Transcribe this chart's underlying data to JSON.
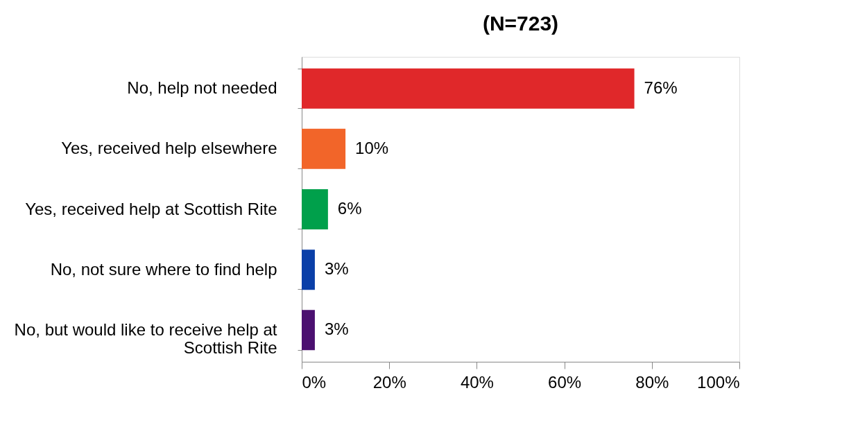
{
  "chart_data": {
    "type": "bar",
    "orientation": "horizontal",
    "title": "(N=723)",
    "categories": [
      "No, help not needed",
      "Yes, received help elsewhere",
      "Yes, received help at Scottish Rite",
      "No, not sure where to find help",
      "No, but would like to receive help at Scottish Rite"
    ],
    "values": [
      76,
      10,
      6,
      3,
      3
    ],
    "colors": [
      "#e0282a",
      "#f26529",
      "#00a04b",
      "#0a3fa8",
      "#4b1070"
    ],
    "value_labels": [
      "76%",
      "10%",
      "6%",
      "3%",
      "3%"
    ],
    "xlim": [
      0,
      100
    ],
    "xticks": [
      {
        "value": 0,
        "label": "0%"
      },
      {
        "value": 20,
        "label": "20%"
      },
      {
        "value": 40,
        "label": "40%"
      },
      {
        "value": 60,
        "label": "60%"
      },
      {
        "value": 80,
        "label": "80%"
      },
      {
        "value": 100,
        "label": "100%"
      }
    ],
    "grid": false
  }
}
